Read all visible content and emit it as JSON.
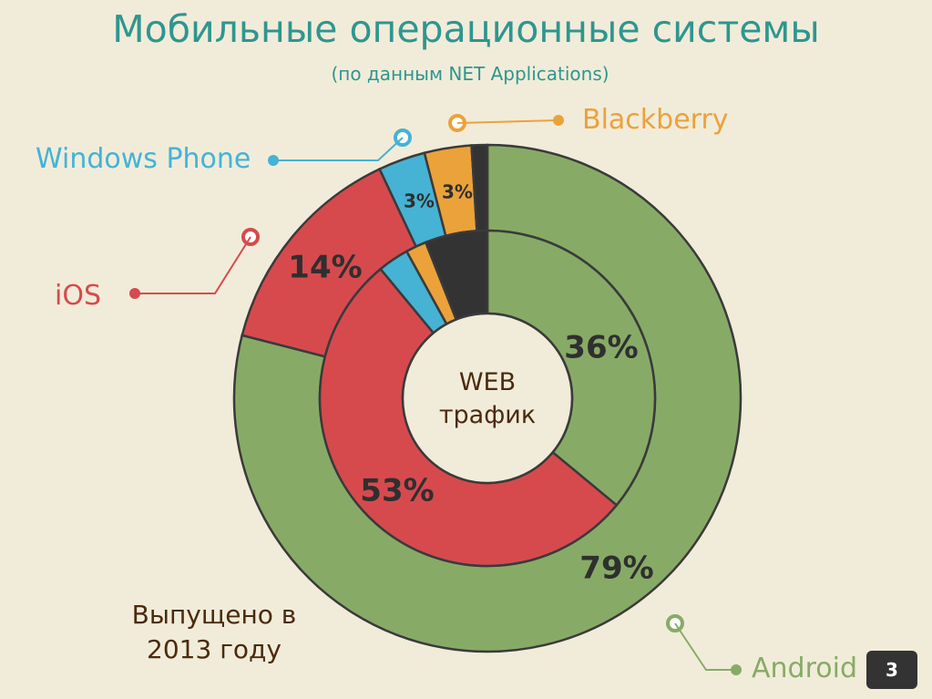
{
  "slide": {
    "title": "Мобильные операционные системы",
    "subtitle": "(по данным NET Applications)",
    "center_label_line1": "WEB",
    "center_label_line2": "трафик",
    "note_line1": "Выпущено в",
    "note_line2": "2013 году",
    "page_number": "3"
  },
  "colors": {
    "Android": "#87ab66",
    "iOS": "#d64a4e",
    "Windows Phone": "#46b2d4",
    "Blackberry": "#eba23a",
    "Other": "#333333",
    "outline": "#3a3a3a",
    "background": "#f1ecd9"
  },
  "chart_data": {
    "type": "pie",
    "title": "Мобильные операционные системы",
    "subtitle": "(по данным NET Applications)",
    "legend": [
      "Windows Phone",
      "Blackberry",
      "iOS",
      "Android"
    ],
    "series": [
      {
        "name": "Выпущено в 2013 году",
        "ring": "outer",
        "slices": [
          {
            "category": "Android",
            "value": 79,
            "label": "79%"
          },
          {
            "category": "iOS",
            "value": 14,
            "label": "14%"
          },
          {
            "category": "Windows Phone",
            "value": 3,
            "label": "3%"
          },
          {
            "category": "Blackberry",
            "value": 3,
            "label": "3%"
          },
          {
            "category": "Other",
            "value": 1,
            "label": ""
          }
        ]
      },
      {
        "name": "WEB трафик",
        "ring": "inner",
        "slices": [
          {
            "category": "Android",
            "value": 36,
            "label": "36%"
          },
          {
            "category": "iOS",
            "value": 53,
            "label": "53%"
          },
          {
            "category": "Windows Phone",
            "value": 3,
            "label": ""
          },
          {
            "category": "Blackberry",
            "value": 2,
            "label": ""
          },
          {
            "category": "Other",
            "value": 6,
            "label": ""
          }
        ]
      }
    ]
  }
}
